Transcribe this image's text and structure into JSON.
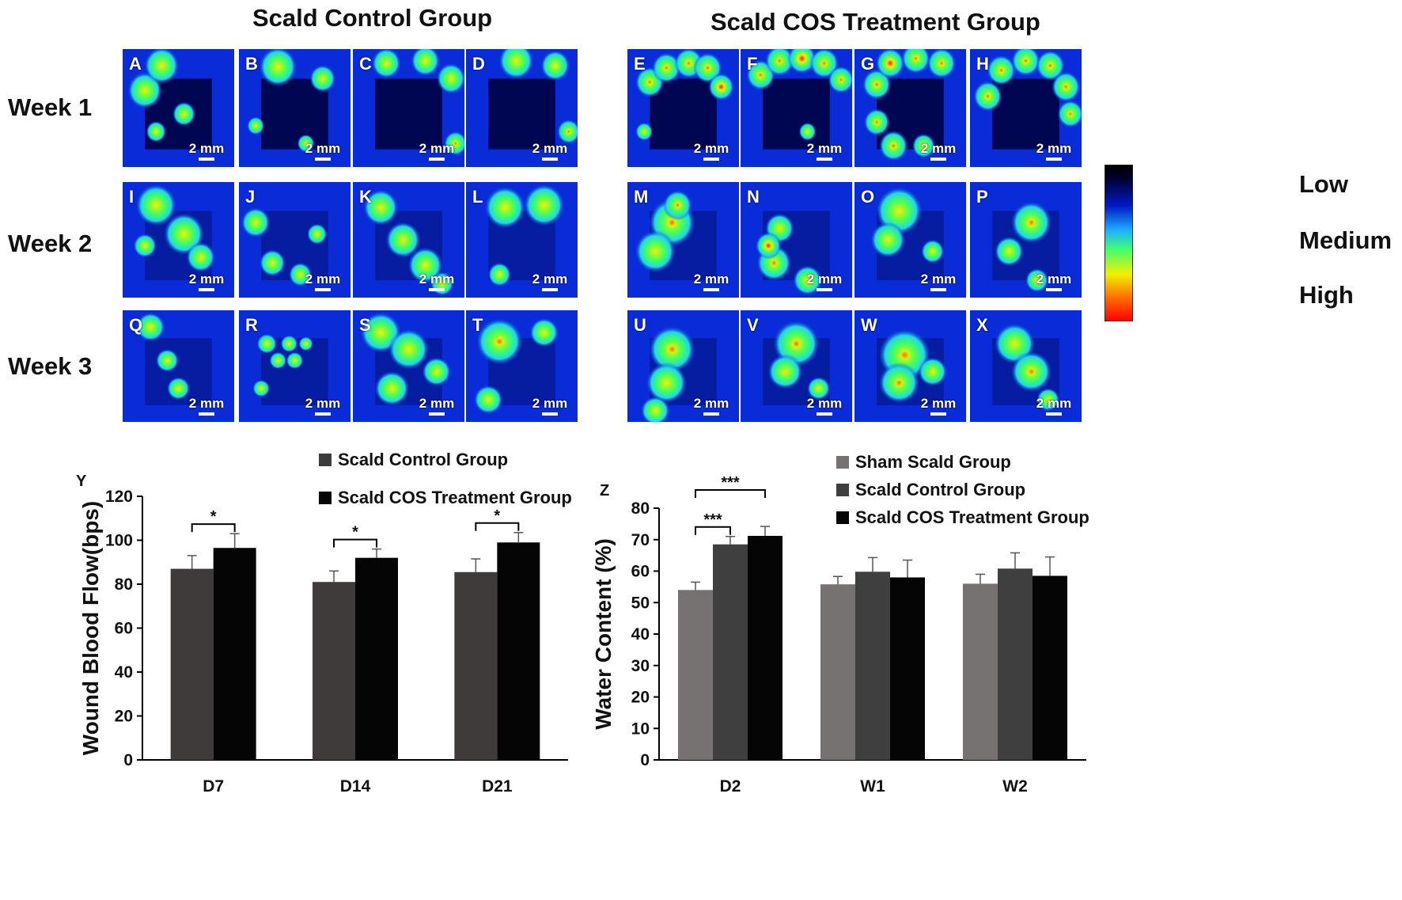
{
  "figure": {
    "group_titles": {
      "control": "Scald Control Group",
      "treatment": "Scald COS Treatment Group"
    },
    "weeks": [
      "Week 1",
      "Week 2",
      "Week 3"
    ],
    "scale_label": "2 mm",
    "panels": [
      "A",
      "B",
      "C",
      "D",
      "E",
      "F",
      "G",
      "H",
      "I",
      "J",
      "K",
      "L",
      "M",
      "N",
      "O",
      "P",
      "Q",
      "R",
      "S",
      "T",
      "U",
      "V",
      "W",
      "X"
    ],
    "colorbar": {
      "low": "Low",
      "medium": "Medium",
      "high": "High"
    },
    "colors": {
      "dark_blue": "#00003c",
      "blue": "#0a2cd8",
      "cyan": "#22d7e8",
      "green": "#40ff60",
      "yellow": "#f0f000",
      "red": "#ff1010"
    }
  },
  "chart_data": [
    {
      "id": "Y",
      "type": "bar",
      "panel_label": "Y",
      "ylabel": "Wound Blood Flow(bps)",
      "ylim": [
        0,
        120
      ],
      "yticks": [
        0,
        20,
        40,
        60,
        80,
        100,
        120
      ],
      "categories": [
        "D7",
        "D14",
        "D21"
      ],
      "series": [
        {
          "name": "Scald Control Group",
          "color": "#3f3b3b",
          "values": [
            87,
            81,
            85.5
          ],
          "errors": [
            6,
            5,
            6
          ]
        },
        {
          "name": "Scald COS Treatment Group",
          "color": "#050505",
          "values": [
            96.5,
            92,
            99
          ],
          "errors": [
            6.5,
            4,
            4.5
          ]
        }
      ],
      "significance": [
        {
          "category": "D7",
          "label": "*"
        },
        {
          "category": "D14",
          "label": "*"
        },
        {
          "category": "D21",
          "label": "*"
        }
      ]
    },
    {
      "id": "Z",
      "type": "bar",
      "panel_label": "Z",
      "ylabel": "Water Content (%)",
      "ylim": [
        0,
        80
      ],
      "yticks": [
        0,
        10,
        20,
        30,
        40,
        50,
        60,
        70,
        80
      ],
      "categories": [
        "D2",
        "W1",
        "W2"
      ],
      "series": [
        {
          "name": "Sham Scald Group",
          "color": "#777272",
          "values": [
            54,
            55.8,
            56
          ],
          "errors": [
            2.5,
            2.5,
            3
          ]
        },
        {
          "name": "Scald Control Group",
          "color": "#3f3f3f",
          "values": [
            68.5,
            59.8,
            60.8
          ],
          "errors": [
            2.5,
            4.5,
            5
          ]
        },
        {
          "name": "Scald COS Treatment Group",
          "color": "#050505",
          "values": [
            71.2,
            58,
            58.5
          ],
          "errors": [
            3,
            5.5,
            6
          ]
        }
      ],
      "significance": [
        {
          "category": "D2",
          "label": "***",
          "from": 0,
          "to": 1
        },
        {
          "category": "D2",
          "label": "***",
          "from": 0,
          "to": 2
        }
      ]
    }
  ]
}
